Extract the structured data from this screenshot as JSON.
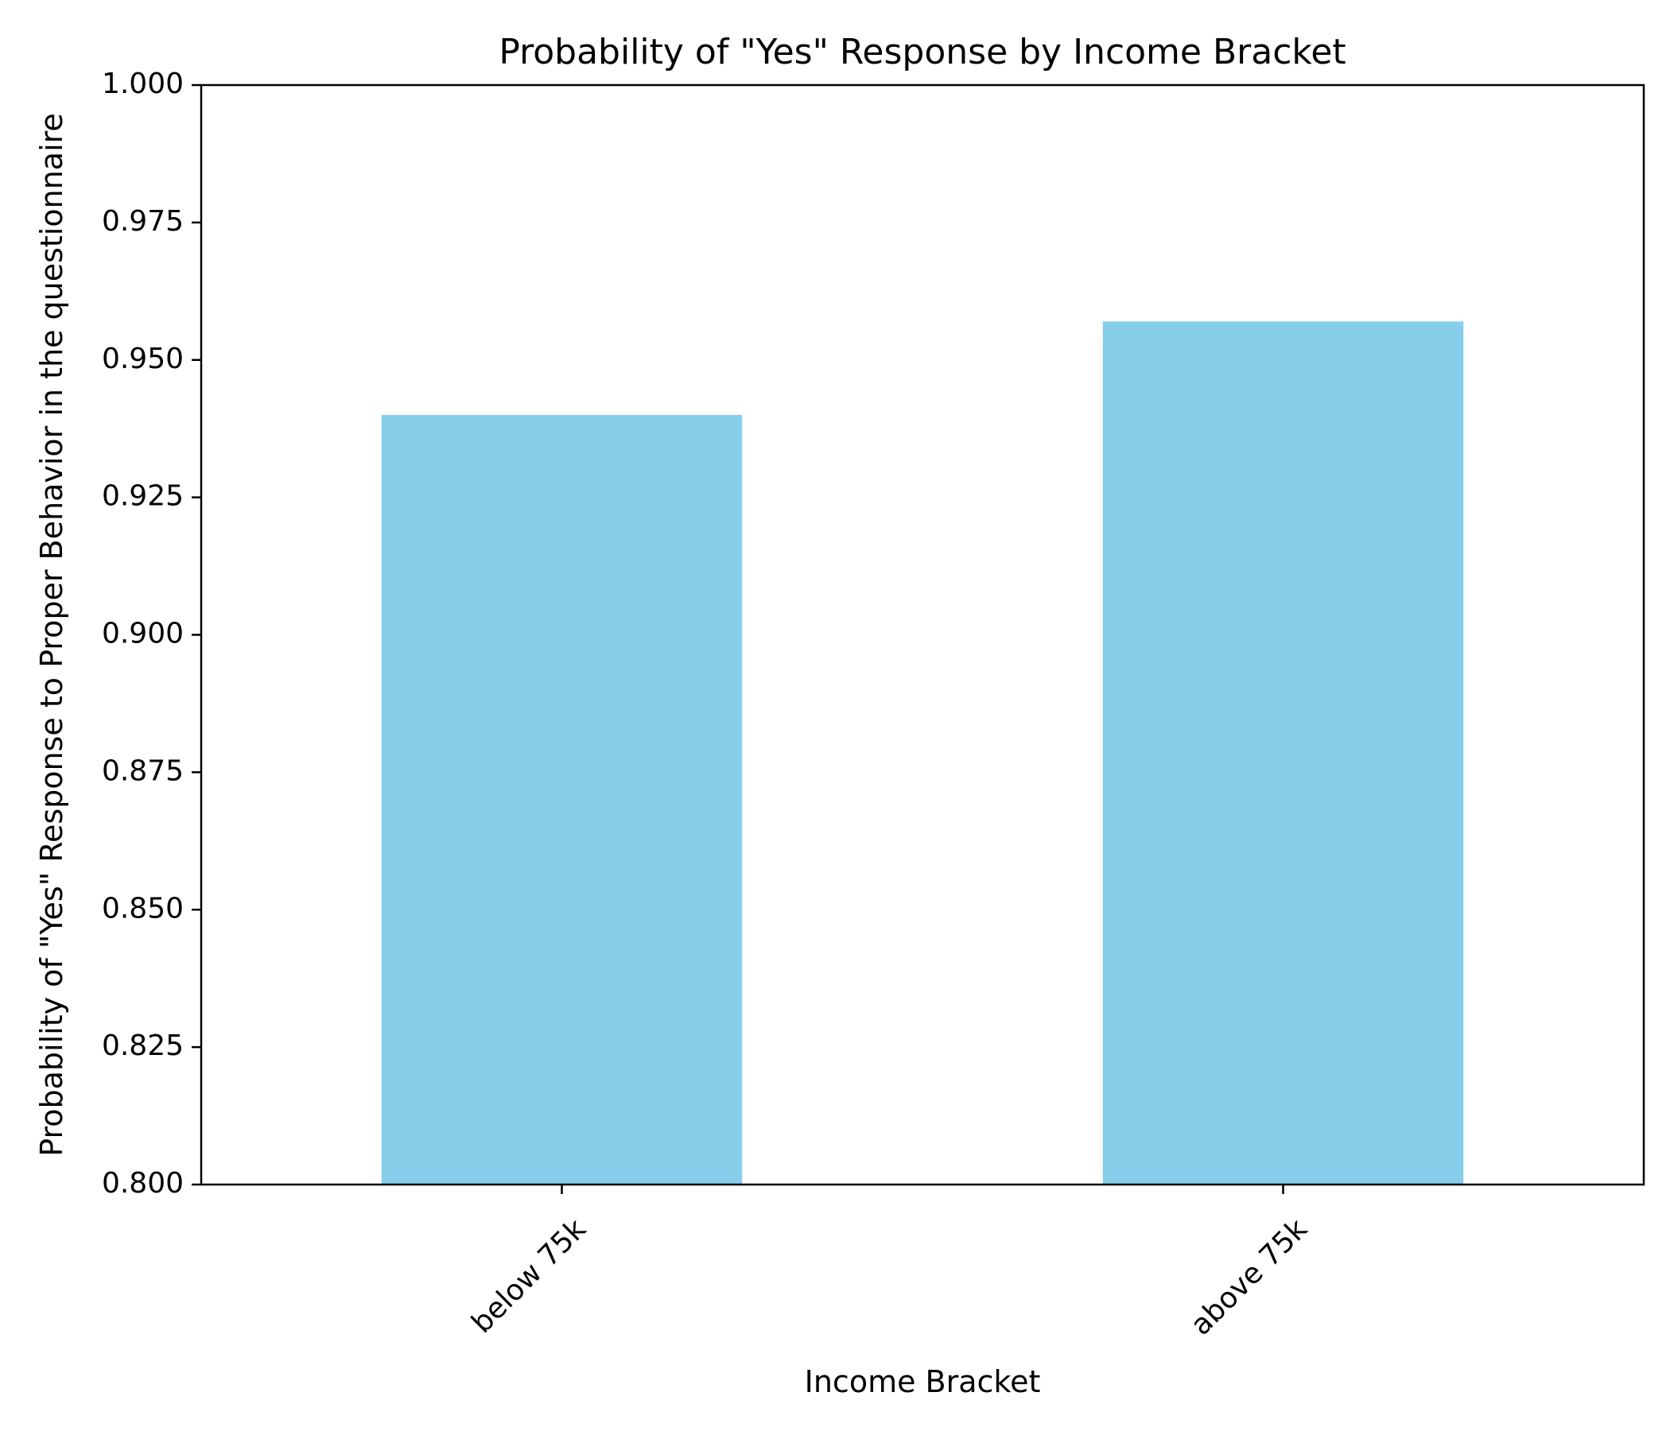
{
  "chart_data": {
    "type": "bar",
    "title": "Probability of \"Yes\" Response by Income Bracket",
    "xlabel": "Income Bracket",
    "ylabel": "Probability of \"Yes\" Response to Proper Behavior in the questionnaire",
    "categories": [
      "below 75k",
      "above 75k"
    ],
    "values": [
      0.94,
      0.957
    ],
    "ylim": [
      0.8,
      1.0
    ],
    "yticks": [
      0.8,
      0.825,
      0.85,
      0.875,
      0.9,
      0.925,
      0.95,
      0.975,
      1.0
    ],
    "ytick_labels": [
      "0.800",
      "0.825",
      "0.850",
      "0.875",
      "0.900",
      "0.925",
      "0.950",
      "0.975",
      "1.000"
    ],
    "bar_color": "#87CEEB",
    "grid": false,
    "legend": "none"
  }
}
